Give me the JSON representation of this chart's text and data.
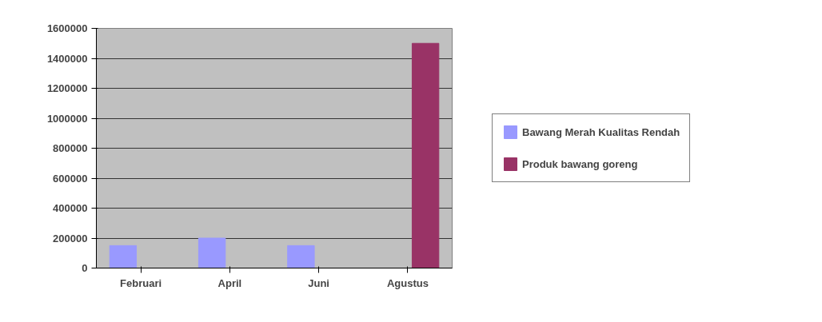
{
  "chart_data": {
    "type": "bar",
    "categories": [
      "Februari",
      "April",
      "Juni",
      "Agustus"
    ],
    "series": [
      {
        "name": "Bawang Merah Kualitas Rendah",
        "color": "#9999ff",
        "values": [
          150000,
          200000,
          150000,
          0
        ]
      },
      {
        "name": "Produk bawang goreng",
        "color": "#993366",
        "values": [
          0,
          0,
          0,
          1500000
        ]
      }
    ],
    "ylim": [
      0,
      1600000
    ],
    "yticks": [
      0,
      200000,
      400000,
      600000,
      800000,
      1000000,
      1200000,
      1400000,
      1600000
    ],
    "grid": "y",
    "legend": "right"
  }
}
